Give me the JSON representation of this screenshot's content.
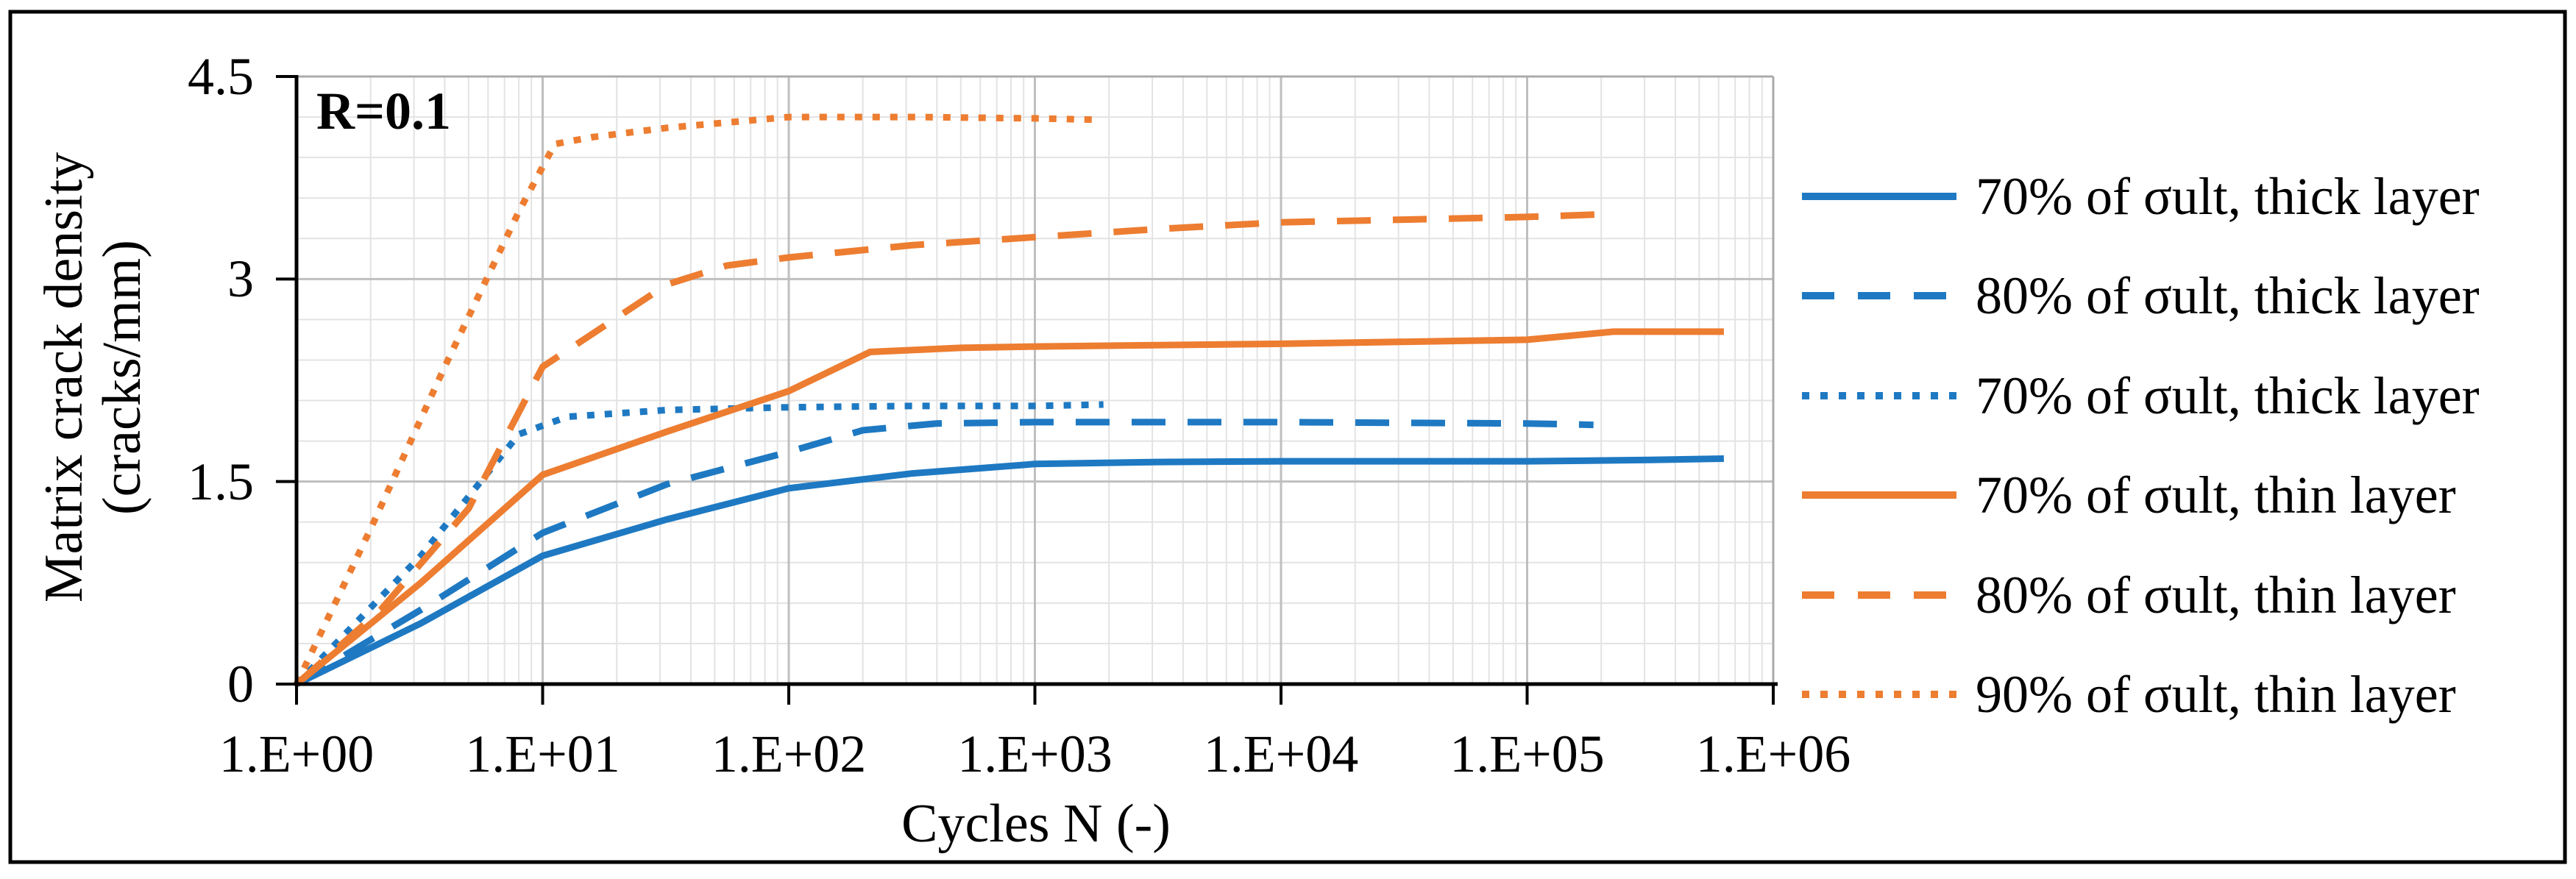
{
  "figure": {
    "annotation": "R=0.1"
  },
  "colors": {
    "blue": "#1E79C2",
    "orange": "#ED7D31",
    "grid_minor": "#E3E3E3",
    "grid_major": "#BFBFBF",
    "plot_border": "#ABABAB",
    "axis": "#000000",
    "frame": "#000000"
  },
  "chart_data": {
    "type": "line",
    "title": "",
    "annotation": "R=0.1",
    "xlabel": "Cycles N (-)",
    "ylabel_line1": "Matrix crack density",
    "ylabel_line2": "(cracks/mm)",
    "x_scale": "log10",
    "xlim": [
      1,
      1000000
    ],
    "ylim": [
      0,
      4.5
    ],
    "x_tick_labels": [
      "1.E+00",
      "1.E+01",
      "1.E+02",
      "1.E+03",
      "1.E+04",
      "1.E+05",
      "1.E+06"
    ],
    "x_tick_values": [
      1,
      10,
      100,
      1000,
      10000,
      100000,
      1000000
    ],
    "y_tick_labels": [
      "0",
      "1.5",
      "3",
      "4.5"
    ],
    "y_tick_values": [
      0,
      1.5,
      3,
      4.5
    ],
    "y_minor_step": 0.3,
    "grid": true,
    "legend_position": "right",
    "series": [
      {
        "name": "70% of σult, thick layer",
        "color": "blue",
        "style": "solid",
        "points": [
          [
            1,
            0
          ],
          [
            3.2,
            0.45
          ],
          [
            10,
            0.95
          ],
          [
            32,
            1.22
          ],
          [
            100,
            1.45
          ],
          [
            316,
            1.56
          ],
          [
            1000,
            1.63
          ],
          [
            3160,
            1.645
          ],
          [
            10000,
            1.65
          ],
          [
            100000,
            1.65
          ],
          [
            316000,
            1.66
          ],
          [
            630000,
            1.67
          ]
        ]
      },
      {
        "name": "80% of σult, thick layer",
        "color": "blue",
        "style": "dashed",
        "points": [
          [
            1,
            0
          ],
          [
            3.2,
            0.55
          ],
          [
            10,
            1.12
          ],
          [
            32,
            1.48
          ],
          [
            100,
            1.72
          ],
          [
            200,
            1.88
          ],
          [
            400,
            1.93
          ],
          [
            1000,
            1.94
          ],
          [
            10000,
            1.94
          ],
          [
            100000,
            1.93
          ],
          [
            186000,
            1.92
          ]
        ]
      },
      {
        "name": "70% of σult, thick layer",
        "color": "blue",
        "style": "dotted",
        "points": [
          [
            1,
            0
          ],
          [
            3.2,
            0.95
          ],
          [
            8,
            1.85
          ],
          [
            12.6,
            1.98
          ],
          [
            32,
            2.03
          ],
          [
            100,
            2.05
          ],
          [
            316,
            2.06
          ],
          [
            1000,
            2.06
          ],
          [
            1900,
            2.07
          ]
        ]
      },
      {
        "name": "70% of σult, thin layer",
        "color": "orange",
        "style": "solid",
        "points": [
          [
            1,
            0
          ],
          [
            3.2,
            0.75
          ],
          [
            10,
            1.55
          ],
          [
            32,
            1.87
          ],
          [
            100,
            2.17
          ],
          [
            214,
            2.46
          ],
          [
            500,
            2.49
          ],
          [
            1000,
            2.5
          ],
          [
            10000,
            2.52
          ],
          [
            100000,
            2.55
          ],
          [
            224000,
            2.61
          ],
          [
            630000,
            2.61
          ]
        ]
      },
      {
        "name": "80% of σult, thin layer",
        "color": "orange",
        "style": "dashed",
        "points": [
          [
            1,
            0
          ],
          [
            2.2,
            0.55
          ],
          [
            5,
            1.3
          ],
          [
            10,
            2.35
          ],
          [
            32,
            2.96
          ],
          [
            56,
            3.1
          ],
          [
            100,
            3.16
          ],
          [
            316,
            3.25
          ],
          [
            1000,
            3.31
          ],
          [
            3160,
            3.37
          ],
          [
            10000,
            3.42
          ],
          [
            31600,
            3.44
          ],
          [
            100000,
            3.46
          ],
          [
            210000,
            3.48
          ]
        ]
      },
      {
        "name": "90% of σult, thin layer",
        "color": "orange",
        "style": "dotted",
        "points": [
          [
            1,
            0
          ],
          [
            2,
            1.15
          ],
          [
            4,
            2.35
          ],
          [
            8,
            3.5
          ],
          [
            11.2,
            4.0
          ],
          [
            15.8,
            4.05
          ],
          [
            32,
            4.12
          ],
          [
            100,
            4.2
          ],
          [
            316,
            4.2
          ],
          [
            1000,
            4.19
          ],
          [
            1740,
            4.18
          ]
        ]
      }
    ]
  },
  "legend": {
    "items": [
      {
        "series_index": 0
      },
      {
        "series_index": 1
      },
      {
        "series_index": 2
      },
      {
        "series_index": 3
      },
      {
        "series_index": 4
      },
      {
        "series_index": 5
      }
    ]
  }
}
